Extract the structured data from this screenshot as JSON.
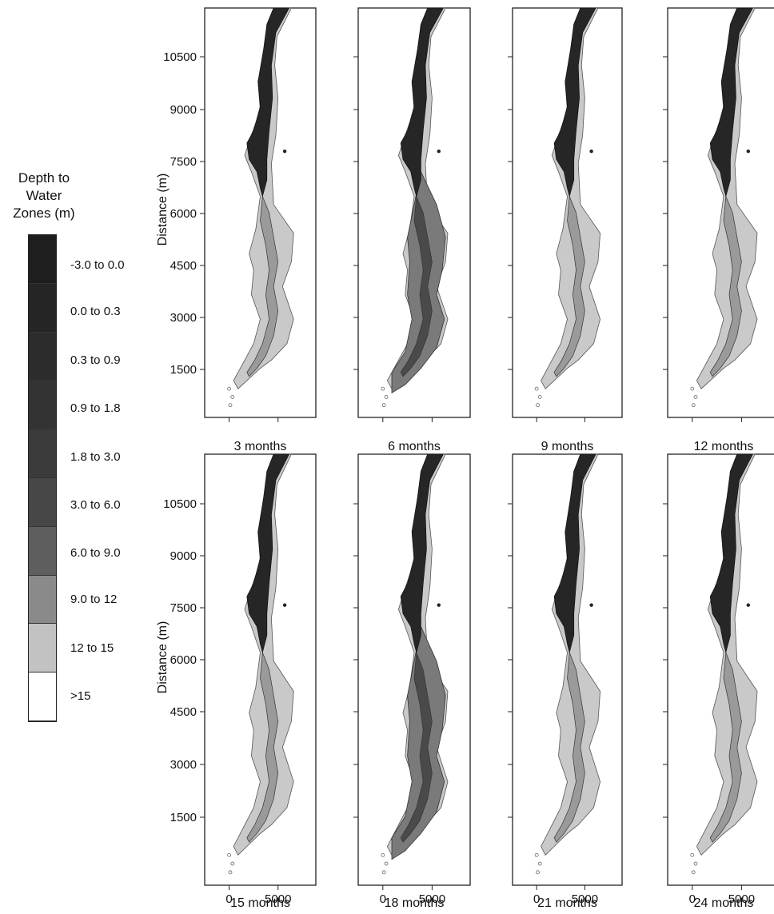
{
  "legend": {
    "title_line1": "Depth to Water",
    "title_line2": "Zones (m)",
    "zones": [
      {
        "label": "-3.0 to 0.0",
        "color": "#1e1e1e"
      },
      {
        "label": "0.0 to 0.3",
        "color": "#252525"
      },
      {
        "label": "0.3 to 0.9",
        "color": "#2c2c2c"
      },
      {
        "label": "0.9 to 1.8",
        "color": "#333333"
      },
      {
        "label": "1.8 to 3.0",
        "color": "#3b3b3b"
      },
      {
        "label": "3.0 to 6.0",
        "color": "#474747"
      },
      {
        "label": "6.0 to 9.0",
        "color": "#5e5e5e"
      },
      {
        "label": "9.0 to 12",
        "color": "#8a8a8a"
      },
      {
        "label": "12 to 15",
        "color": "#c2c2c2"
      },
      {
        "label": ">15",
        "color": "#ffffff"
      }
    ]
  },
  "axes": {
    "ylabel": "Distance (m)",
    "yticks": [
      "10500",
      "9000",
      "7500",
      "6000",
      "4500",
      "3000",
      "1500"
    ],
    "xticks": [
      "0",
      "5000"
    ]
  },
  "panels": [
    {
      "caption": "3 months",
      "middle_zone": "light"
    },
    {
      "caption": "6 months",
      "middle_zone": "dark"
    },
    {
      "caption": "9 months",
      "middle_zone": "light"
    },
    {
      "caption": "12 months",
      "middle_zone": "light"
    },
    {
      "caption": "15 months",
      "middle_zone": "light"
    },
    {
      "caption": "18 months",
      "middle_zone": "dark"
    },
    {
      "caption": "21 months",
      "middle_zone": "light"
    },
    {
      "caption": "24 months",
      "middle_zone": "light"
    }
  ]
}
